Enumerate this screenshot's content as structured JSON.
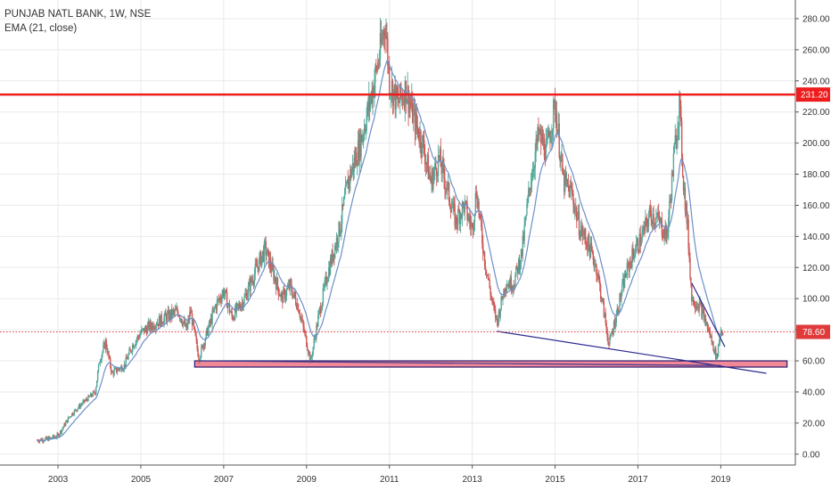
{
  "chart_data": {
    "type": "candlestick",
    "title": "PUNJAB NATL BANK, 1W, NSE",
    "indicator": "EMA (21, close)",
    "x_ticks": [
      "2003",
      "2005",
      "2007",
      "2009",
      "2011",
      "2013",
      "2015",
      "2017",
      "2019"
    ],
    "y_ticks": [
      "0.00",
      "20.00",
      "40.00",
      "60.00",
      "80.00",
      "100.00",
      "120.00",
      "140.00",
      "160.00",
      "180.00",
      "200.00",
      "220.00",
      "240.00",
      "260.00",
      "280.00"
    ],
    "xlim": [
      2001.6,
      2020.8
    ],
    "ylim": [
      -7,
      292
    ],
    "price_path": [
      [
        2002.5,
        9
      ],
      [
        2002.8,
        10
      ],
      [
        2003.0,
        12
      ],
      [
        2003.3,
        25
      ],
      [
        2003.6,
        33
      ],
      [
        2003.9,
        40
      ],
      [
        2004.0,
        60
      ],
      [
        2004.15,
        72
      ],
      [
        2004.3,
        52
      ],
      [
        2004.6,
        57
      ],
      [
        2004.8,
        70
      ],
      [
        2005.0,
        78
      ],
      [
        2005.2,
        82
      ],
      [
        2005.4,
        85
      ],
      [
        2005.6,
        88
      ],
      [
        2005.9,
        92
      ],
      [
        2006.1,
        80
      ],
      [
        2006.2,
        92
      ],
      [
        2006.4,
        62
      ],
      [
        2006.5,
        70
      ],
      [
        2006.8,
        95
      ],
      [
        2007.0,
        105
      ],
      [
        2007.2,
        88
      ],
      [
        2007.5,
        100
      ],
      [
        2007.8,
        120
      ],
      [
        2008.0,
        132
      ],
      [
        2008.15,
        120
      ],
      [
        2008.4,
        100
      ],
      [
        2008.6,
        108
      ],
      [
        2008.8,
        95
      ],
      [
        2009.0,
        72
      ],
      [
        2009.1,
        60
      ],
      [
        2009.3,
        90
      ],
      [
        2009.5,
        115
      ],
      [
        2009.8,
        145
      ],
      [
        2010.0,
        175
      ],
      [
        2010.3,
        200
      ],
      [
        2010.6,
        235
      ],
      [
        2010.8,
        262
      ],
      [
        2010.9,
        278
      ],
      [
        2011.0,
        240
      ],
      [
        2011.2,
        225
      ],
      [
        2011.4,
        235
      ],
      [
        2011.6,
        215
      ],
      [
        2011.8,
        200
      ],
      [
        2012.0,
        175
      ],
      [
        2012.2,
        190
      ],
      [
        2012.4,
        170
      ],
      [
        2012.6,
        150
      ],
      [
        2012.8,
        160
      ],
      [
        2013.0,
        145
      ],
      [
        2013.1,
        170
      ],
      [
        2013.3,
        125
      ],
      [
        2013.5,
        95
      ],
      [
        2013.6,
        85
      ],
      [
        2013.8,
        110
      ],
      [
        2014.0,
        110
      ],
      [
        2014.2,
        130
      ],
      [
        2014.4,
        175
      ],
      [
        2014.6,
        205
      ],
      [
        2014.8,
        195
      ],
      [
        2015.0,
        225
      ],
      [
        2015.2,
        175
      ],
      [
        2015.4,
        168
      ],
      [
        2015.6,
        145
      ],
      [
        2015.8,
        135
      ],
      [
        2016.0,
        120
      ],
      [
        2016.2,
        88
      ],
      [
        2016.3,
        70
      ],
      [
        2016.5,
        92
      ],
      [
        2016.7,
        115
      ],
      [
        2016.9,
        130
      ],
      [
        2017.1,
        140
      ],
      [
        2017.3,
        155
      ],
      [
        2017.5,
        150
      ],
      [
        2017.7,
        140
      ],
      [
        2017.9,
        200
      ],
      [
        2018.0,
        225
      ],
      [
        2018.1,
        175
      ],
      [
        2018.2,
        145
      ],
      [
        2018.3,
        100
      ],
      [
        2018.5,
        95
      ],
      [
        2018.7,
        80
      ],
      [
        2018.9,
        62
      ],
      [
        2019.0,
        80
      ],
      [
        2019.05,
        79
      ]
    ],
    "horizontal_line": {
      "value": 231.2,
      "label": "231.20",
      "color": "#ee1c1c"
    },
    "last_price": {
      "value": 78.6,
      "label": "78.60",
      "color": "#e03b3b"
    },
    "support_zone": {
      "from": 2006.3,
      "to": 2020.6,
      "low": 56,
      "high": 60,
      "fill": "#f08898",
      "border": "#2a1a6e"
    },
    "trendlines": [
      {
        "from": [
          2013.6,
          79
        ],
        "to": [
          2020.1,
          52
        ],
        "color": "#2b2a8e"
      },
      {
        "from": [
          2006.4,
          60
        ],
        "to": [
          2019.0,
          57
        ],
        "color": "#3d3a8e"
      },
      {
        "from": [
          2018.3,
          110
        ],
        "to": [
          2019.1,
          69
        ],
        "color": "#2b2a8e"
      }
    ],
    "colors": {
      "up": "#53a89a",
      "down": "#ce5a57",
      "ema": "#6b8fc9",
      "grid": "#eaeaea"
    }
  }
}
